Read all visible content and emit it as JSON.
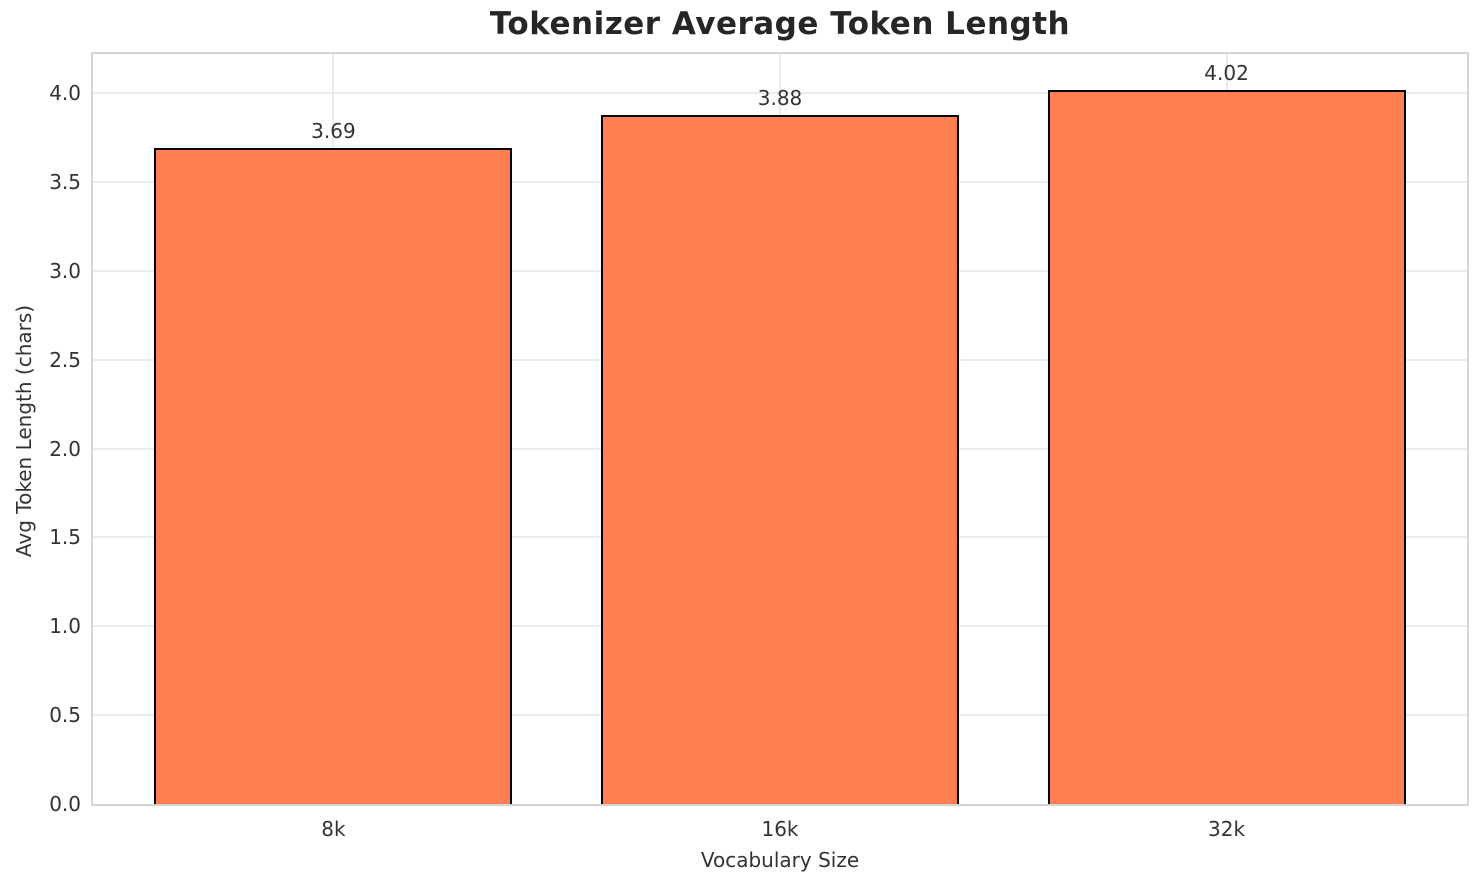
{
  "chart_data": {
    "type": "bar",
    "title": "Tokenizer Average Token Length",
    "xlabel": "Vocabulary Size",
    "ylabel": "Avg Token Length (chars)",
    "categories": [
      "8k",
      "16k",
      "32k"
    ],
    "values": [
      3.69,
      3.88,
      4.02
    ],
    "value_labels": [
      "3.69",
      "3.88",
      "4.02"
    ],
    "ylim": [
      0,
      4.221
    ],
    "yticks": {
      "values": [
        0.0,
        0.5,
        1.0,
        1.5,
        2.0,
        2.5,
        3.0,
        3.5,
        4.0
      ],
      "labels": [
        "0.0",
        "0.5",
        "1.0",
        "1.5",
        "2.0",
        "2.5",
        "3.0",
        "3.5",
        "4.0"
      ]
    },
    "grid": true,
    "legend": "none",
    "colors": {
      "bar_fill": "#FF7F50",
      "bar_edge": "#000000",
      "grid": "#ececec",
      "spine": "#d5d5d5",
      "text": "#333333",
      "title": "#262626",
      "background": "#ffffff"
    }
  }
}
